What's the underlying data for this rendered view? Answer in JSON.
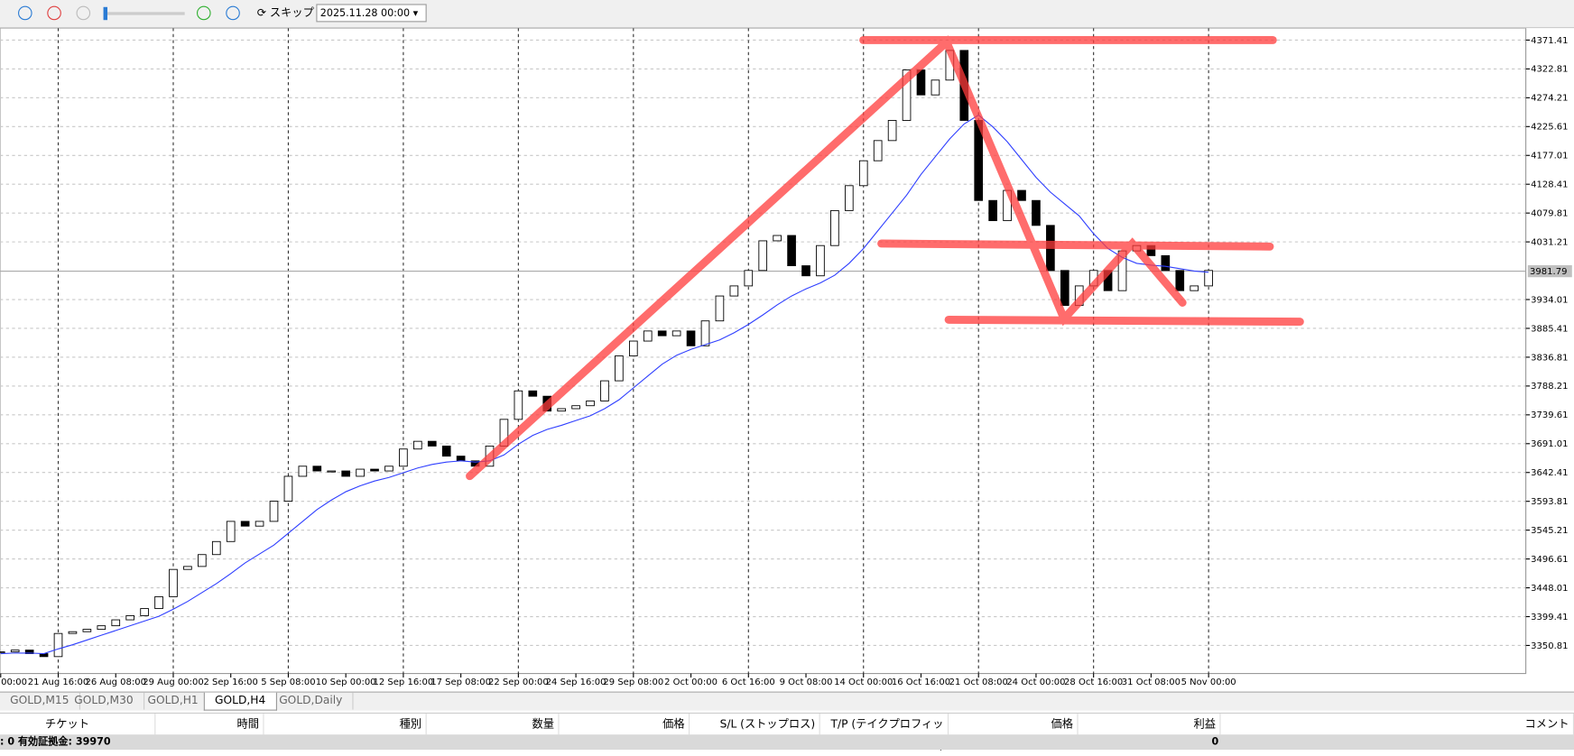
{
  "toolbar": {
    "skip_label": "スキップ",
    "date": "2025.11.28 00:00"
  },
  "chart_data": {
    "type": "candlestick",
    "categories": [
      "00:00",
      null,
      null,
      null,
      "21 Aug 16:00",
      null,
      null,
      null,
      "26 Aug 08:00",
      null,
      null,
      null,
      "29 Aug 00:00",
      null,
      null,
      null,
      "2 Sep 16:00",
      null,
      null,
      null,
      "5 Sep 08:00",
      null,
      null,
      null,
      "10 Sep 00:00",
      null,
      null,
      null,
      "12 Sep 16:00",
      null,
      null,
      null,
      "17 Sep 08:00",
      null,
      null,
      null,
      "22 Sep 00:00",
      null,
      null,
      null,
      "24 Sep 16:00",
      null,
      null,
      null,
      "29 Sep 08:00",
      null,
      null,
      null,
      "2 Oct 00:00",
      null,
      null,
      null,
      "6 Oct 16:00",
      null,
      null,
      null,
      "9 Oct 08:00",
      null,
      null,
      null,
      "14 Oct 00:00",
      null,
      null,
      null,
      "16 Oct 16:00",
      null,
      null,
      null,
      "21 Oct 08:00",
      null,
      null,
      null,
      "24 Oct 00:00",
      null,
      null,
      null,
      "28 Oct 16:00",
      null,
      null,
      null,
      "31 Oct 08:00",
      null,
      null,
      null,
      "5 Nov 00:00"
    ],
    "series": [
      {
        "name": "close",
        "values": [
          3340,
          3343,
          3337,
          3332,
          3371,
          3374,
          3378,
          3384,
          3394,
          3401,
          3413,
          3433,
          3479,
          3484,
          3504,
          3526,
          3560,
          3552,
          3560,
          3594,
          3636,
          3653,
          3645,
          3645,
          3636,
          3648,
          3645,
          3653,
          3682,
          3695,
          3687,
          3670,
          3662,
          3653,
          3687,
          3732,
          3780,
          3771,
          3746,
          3750,
          3755,
          3763,
          3797,
          3839,
          3864,
          3881,
          3873,
          3881,
          3856,
          3898,
          3940,
          3957,
          3983,
          4033,
          4042,
          3991,
          3974,
          4025,
          4084,
          4126,
          4168,
          4202,
          4236,
          4321,
          4279,
          4304,
          4354,
          4236,
          4101,
          4067,
          4118,
          4101,
          4059,
          3983,
          3924,
          3957,
          3983,
          3949,
          4016,
          4025,
          4008,
          3983,
          3949,
          3957,
          3983
        ]
      },
      {
        "name": "MA",
        "color": "#2f3fff",
        "values": [
          3337,
          3338,
          3338,
          3337,
          3345,
          3352,
          3360,
          3368,
          3376,
          3384,
          3392,
          3400,
          3412,
          3425,
          3440,
          3455,
          3472,
          3490,
          3505,
          3520,
          3540,
          3560,
          3580,
          3596,
          3610,
          3620,
          3628,
          3634,
          3642,
          3650,
          3656,
          3660,
          3662,
          3660,
          3662,
          3672,
          3690,
          3705,
          3715,
          3722,
          3730,
          3738,
          3750,
          3765,
          3785,
          3805,
          3825,
          3840,
          3850,
          3858,
          3866,
          3878,
          3892,
          3908,
          3925,
          3940,
          3952,
          3962,
          3975,
          3995,
          4020,
          4050,
          4080,
          4110,
          4145,
          4175,
          4205,
          4230,
          4245,
          4225,
          4200,
          4170,
          4140,
          4115,
          4095,
          4075,
          4045,
          4020,
          4005,
          3995,
          3992,
          3990,
          3986,
          3982,
          3980
        ]
      }
    ],
    "ylim": [
      3303.5,
      4391.7
    ],
    "yticks": [
      3350.81,
      3399.41,
      3448.01,
      3496.61,
      3545.21,
      3593.81,
      3642.41,
      3691.01,
      3739.61,
      3788.21,
      3836.81,
      3885.41,
      3934.01,
      4031.21,
      4079.81,
      4128.41,
      4177.01,
      4225.61,
      4274.21,
      4322.81,
      4371.41
    ],
    "last_price": 3981.79,
    "grid": true
  },
  "tabs": [
    "GOLD,M15",
    "GOLD,M30",
    "GOLD,H1",
    "GOLD,H4",
    "GOLD,Daily"
  ],
  "table": {
    "headers": [
      "チケット",
      "時間",
      "種別",
      "数量",
      "価格",
      "S/L (ストップロス)",
      "T/P (テイクプロフィット)",
      "価格",
      "利益",
      "コメント"
    ],
    "footer": {
      "label": ": 0  有効証拠金: 39970",
      "profit": "0"
    }
  }
}
